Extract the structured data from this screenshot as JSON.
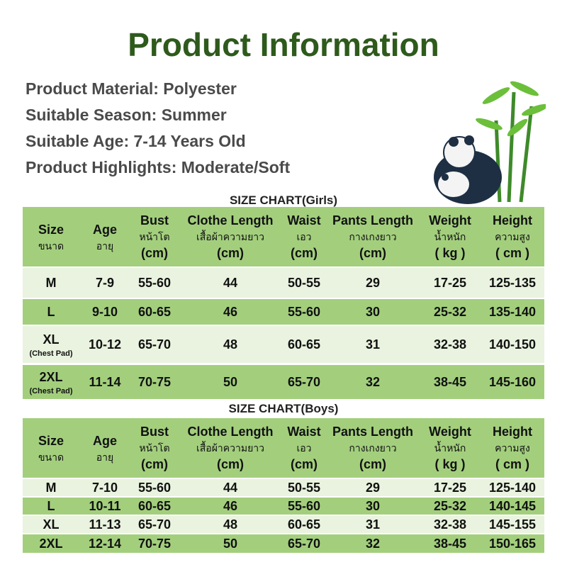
{
  "title": "Product Information",
  "info": [
    "Product Material: Polyester",
    "Suitable Season: Summer",
    "Suitable Age: 7-14 Years Old",
    "Product Highlights: Moderate/Soft"
  ],
  "tables": [
    {
      "caption": "SIZE CHART(Girls)",
      "headers": [
        [
          "Size",
          "ขนาด"
        ],
        [
          "Age",
          "อายุ"
        ],
        [
          "Bust",
          "หน้าโต",
          "(cm)"
        ],
        [
          "Clothe Length",
          "เสื้อผ้าความยาว",
          "(cm)"
        ],
        [
          "Waist",
          "เอว",
          "(cm)"
        ],
        [
          "Pants Length",
          "กางเกงยาว",
          "(cm)"
        ],
        [
          "Weight",
          "น้ำหนัก",
          "( kg )"
        ],
        [
          "Height",
          "ความสูง",
          "( cm )"
        ]
      ],
      "rows": [
        {
          "size": "M",
          "cells": [
            "7-9",
            "55-60",
            "44",
            "50-55",
            "29",
            "17-25",
            "125-135"
          ]
        },
        {
          "size": "L",
          "cells": [
            "9-10",
            "60-65",
            "46",
            "55-60",
            "30",
            "25-32",
            "135-140"
          ]
        },
        {
          "size": "XL",
          "note": "(Chest Pad)",
          "cells": [
            "10-12",
            "65-70",
            "48",
            "60-65",
            "31",
            "32-38",
            "140-150"
          ]
        },
        {
          "size": "2XL",
          "note": "(Chest Pad)",
          "cells": [
            "11-14",
            "70-75",
            "50",
            "65-70",
            "32",
            "38-45",
            "145-160"
          ]
        }
      ]
    },
    {
      "caption": "SIZE CHART(Boys)",
      "headers": [
        [
          "Size",
          "ขนาด"
        ],
        [
          "Age",
          "อายุ"
        ],
        [
          "Bust",
          "หน้าโต",
          "(cm)"
        ],
        [
          "Clothe Length",
          "เสื้อผ้าความยาว",
          "(cm)"
        ],
        [
          "Waist",
          "เอว",
          "(cm)"
        ],
        [
          "Pants Length",
          "กางเกงยาว",
          "(cm)"
        ],
        [
          "Weight",
          "น้ำหนัก",
          "( kg )"
        ],
        [
          "Height",
          "ความสูง",
          "( cm )"
        ]
      ],
      "rows": [
        {
          "size": "M",
          "cells": [
            "7-10",
            "55-60",
            "44",
            "50-55",
            "29",
            "17-25",
            "125-140"
          ]
        },
        {
          "size": "L",
          "cells": [
            "10-11",
            "60-65",
            "46",
            "55-60",
            "30",
            "25-32",
            "140-145"
          ]
        },
        {
          "size": "XL",
          "cells": [
            "11-13",
            "65-70",
            "48",
            "60-65",
            "31",
            "32-38",
            "145-155"
          ]
        },
        {
          "size": "2XL",
          "cells": [
            "12-14",
            "70-75",
            "50",
            "65-70",
            "32",
            "38-45",
            "150-165"
          ]
        }
      ]
    }
  ]
}
